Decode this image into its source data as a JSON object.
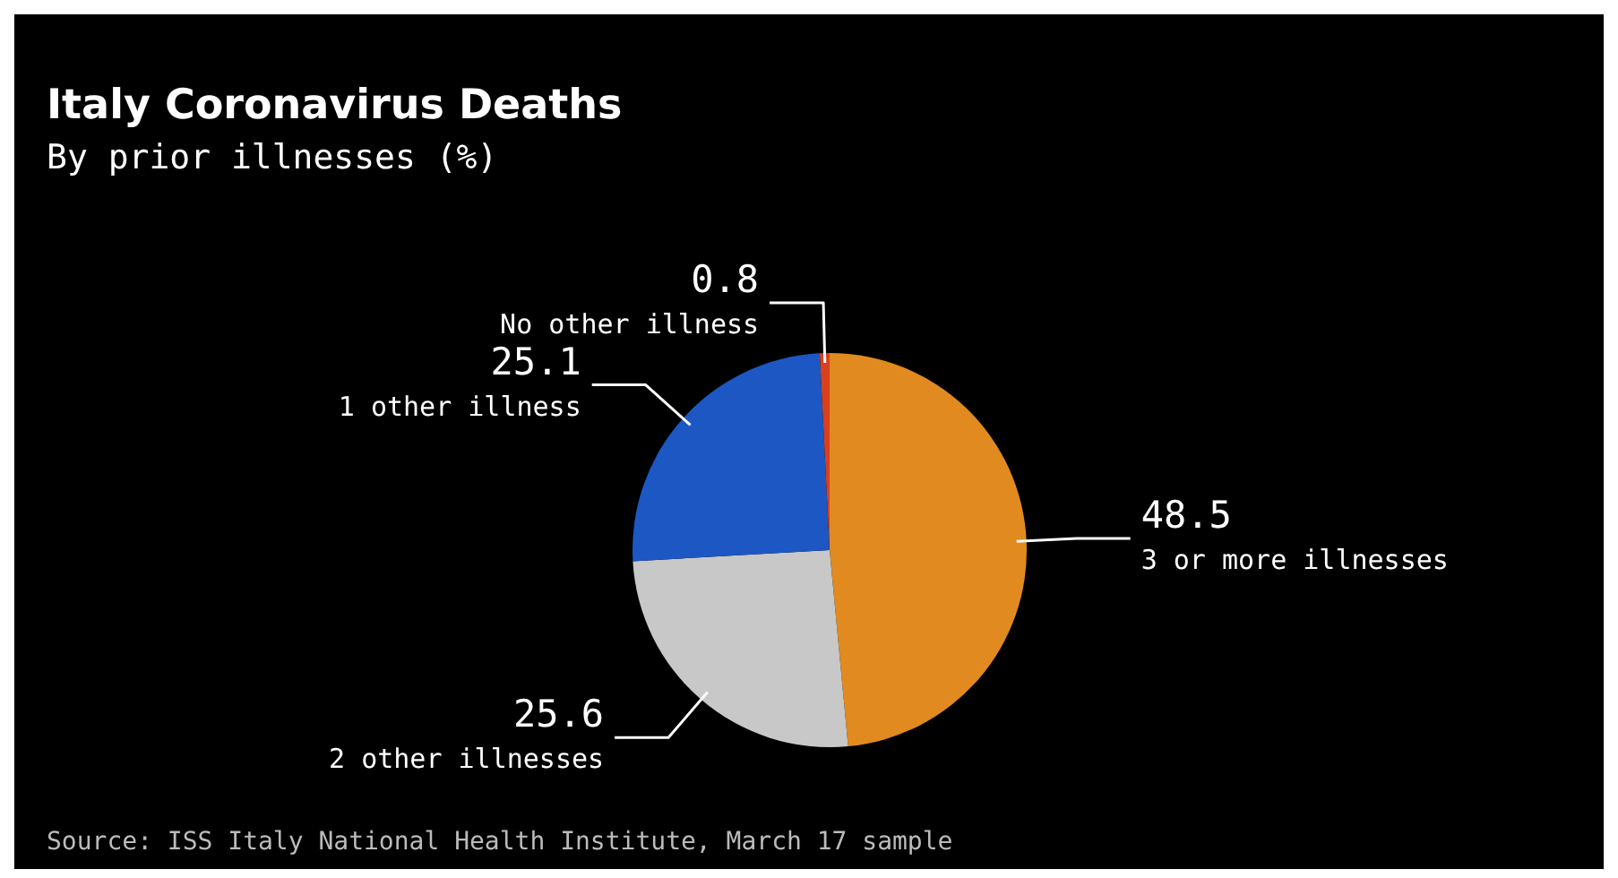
{
  "chart_data": {
    "type": "pie",
    "title": "Italy Coronavirus Deaths",
    "subtitle": "By prior illnesses (%)",
    "categories": [
      "3 or more illnesses",
      "2 other illnesses",
      "1 other illness",
      "No other illness"
    ],
    "values": [
      48.5,
      25.6,
      25.1,
      0.8
    ],
    "colors": [
      "#e08a1f",
      "#c8c8c8",
      "#1c57c4",
      "#d8401e"
    ],
    "data_labels": true,
    "annotations": [
      "Source: ISS Italy National Health Institute, March 17 sample"
    ]
  }
}
